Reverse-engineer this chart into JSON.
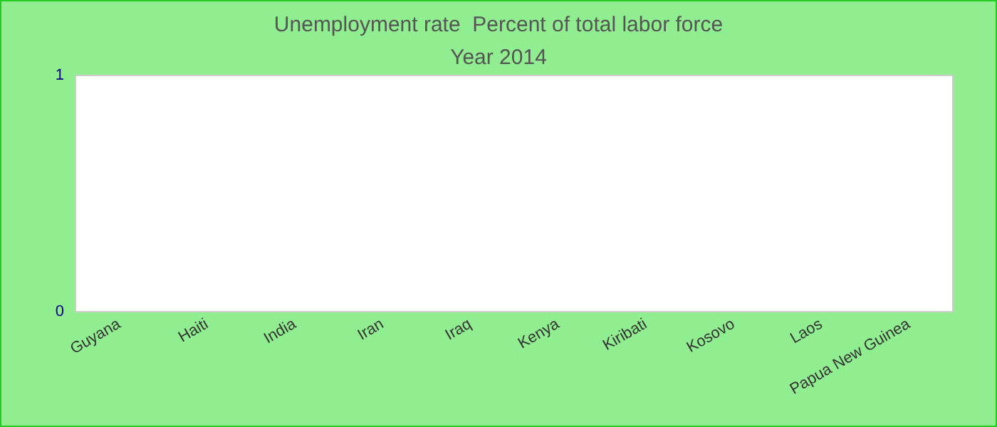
{
  "chart_data": {
    "type": "bar",
    "title": "Unemployment rate  Percent of total labor force",
    "subtitle": "Year 2014",
    "categories": [
      "Guyana",
      "Haiti",
      "India",
      "Iran",
      "Iraq",
      "Kenya",
      "Kiribati",
      "Kosovo",
      "Laos",
      "Papua New Guinea"
    ],
    "values": [
      0,
      0,
      0,
      0,
      0,
      0,
      0,
      0,
      0,
      0
    ],
    "ylim": [
      0,
      1
    ],
    "yticks": [
      0,
      1
    ],
    "grid": false
  }
}
